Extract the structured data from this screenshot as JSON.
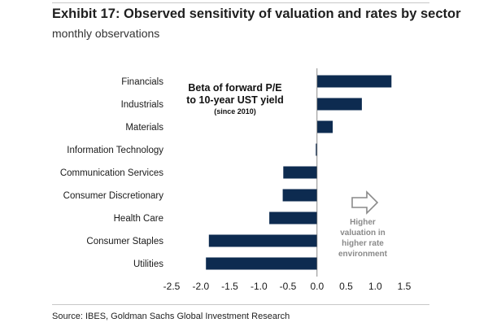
{
  "header": {
    "title": "Exhibit 17: Observed sensitivity of valuation and rates by sector",
    "subtitle": "monthly observations"
  },
  "source": "Source: IBES, Goldman Sachs Global Investment Research",
  "colors": {
    "bar": "#0d2b50",
    "callout": "#8a8a8a",
    "rule": "#c7c7c7"
  },
  "chart_data": {
    "type": "bar",
    "orientation": "horizontal",
    "categories": [
      "Financials",
      "Industrials",
      "Materials",
      "Information Technology",
      "Communication Services",
      "Consumer Discretionary",
      "Health Care",
      "Consumer Staples",
      "Utilities"
    ],
    "values": [
      1.28,
      0.77,
      0.27,
      -0.02,
      -0.58,
      -0.59,
      -0.82,
      -1.86,
      -1.91
    ],
    "xlim": [
      -2.5,
      1.5
    ],
    "xticks": [
      "-2.5",
      "-2.0",
      "-1.5",
      "-1.0",
      "-0.5",
      "0.0",
      "0.5",
      "1.0",
      "1.5"
    ],
    "annotation_box": {
      "line1": "Beta of forward P/E",
      "line2": "to 10-year UST yield",
      "line3": "(since 2010)"
    },
    "callout": {
      "icon": "arrow-right-icon",
      "lines": [
        "Higher",
        "valuation in",
        "higher rate",
        "environment"
      ]
    },
    "grid": false,
    "legend": "none"
  }
}
